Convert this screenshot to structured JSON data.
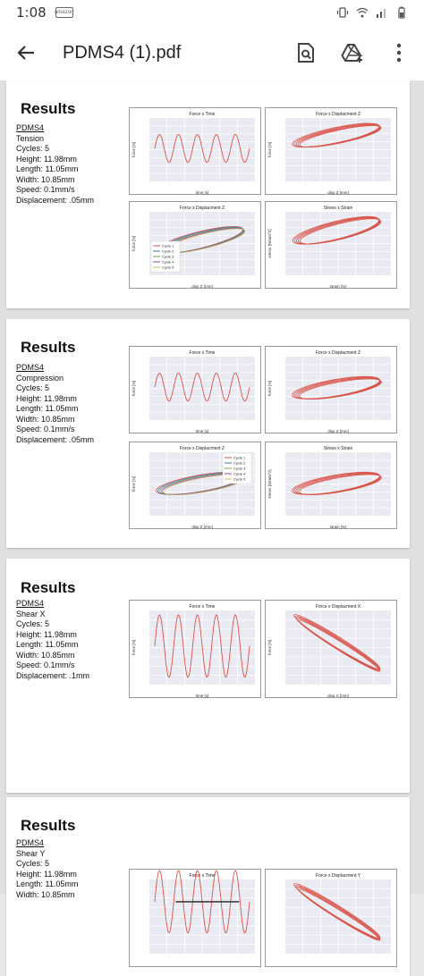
{
  "status": {
    "time": "1:08",
    "notif_label": "amazon"
  },
  "appbar": {
    "title": "PDMS4 (1).pdf"
  },
  "pages": [
    {
      "heading": "Results",
      "material": "PDMS4",
      "lines": [
        "Tension",
        "Cycles: 5",
        "Height: 11.98mm",
        "Length: 11.05mm",
        "Width: 10.85mm",
        "Speed: 0.1mm/s",
        "Displacement: .05mm"
      ],
      "charts": [
        {
          "title": "Force x Time",
          "xlabel": "time [s]",
          "ylabel": "force [N]"
        },
        {
          "title": "Force x Displacment Z",
          "xlabel": "disp Z [mm]",
          "ylabel": "force [N]"
        },
        {
          "title": "Force x Displacment Z",
          "xlabel": "disp Z [mm]",
          "ylabel": "force [N]",
          "legend": [
            "Cycle 1",
            "Cycle 2",
            "Cycle 3",
            "Cycle 4",
            "Cycle 5"
          ]
        },
        {
          "title": "Stress x Strain",
          "xlabel": "strain [%]",
          "ylabel": "stress [N/mm^2]"
        }
      ]
    },
    {
      "heading": "Results",
      "material": "PDMS4",
      "lines": [
        "Compression",
        "Cycles: 5",
        "Height: 11.98mm",
        "Length: 11.05mm",
        "Width: 10.85mm",
        "Speed: 0.1mm/s",
        "Displacement: .05mm"
      ],
      "charts": [
        {
          "title": "Force x Time",
          "xlabel": "time [s]",
          "ylabel": "force [N]"
        },
        {
          "title": "Force x Displacment Z",
          "xlabel": "disp Z [mm]",
          "ylabel": "force [N]"
        },
        {
          "title": "Force x Displacment Z",
          "xlabel": "disp Z [mm]",
          "ylabel": "force [N]",
          "legend": [
            "Cycle 1",
            "Cycle 2",
            "Cycle 3",
            "Cycle 4",
            "Cycle 5"
          ]
        },
        {
          "title": "Stress x Strain",
          "xlabel": "strain [%]",
          "ylabel": "stress [N/mm^2]"
        }
      ]
    },
    {
      "heading": "Results",
      "material": "PDMS4",
      "lines": [
        "Shear X",
        "Cycles: 5",
        "Height: 11.98mm",
        "Length: 11.05mm",
        "Width: 10.85mm",
        "Speed: 0.1mm/s",
        "Displacement: .1mm"
      ],
      "charts": [
        {
          "title": "Force x Time",
          "xlabel": "time [s]",
          "ylabel": "force [N]"
        },
        {
          "title": "Force x Displacment X",
          "xlabel": "disp X [mm]",
          "ylabel": "force [N]"
        }
      ]
    },
    {
      "heading": "Results",
      "material": "PDMS4",
      "lines": [
        "Shear Y",
        "Cycles: 5",
        "Height: 11.98mm",
        "Length: 11.05mm",
        "Width: 10.85mm"
      ],
      "charts": [
        {
          "title": "Force x Time",
          "xlabel": "",
          "ylabel": ""
        },
        {
          "title": "Force x Displacment Y",
          "xlabel": "",
          "ylabel": ""
        }
      ]
    }
  ],
  "colors": {
    "curve": "#d9544a",
    "plot_bg": "#eaeaf2",
    "grid": "#ffffff",
    "cycle_colors": [
      "#d9544a",
      "#4a72b0",
      "#6aa84f",
      "#8e44ad",
      "#c9b458"
    ]
  }
}
